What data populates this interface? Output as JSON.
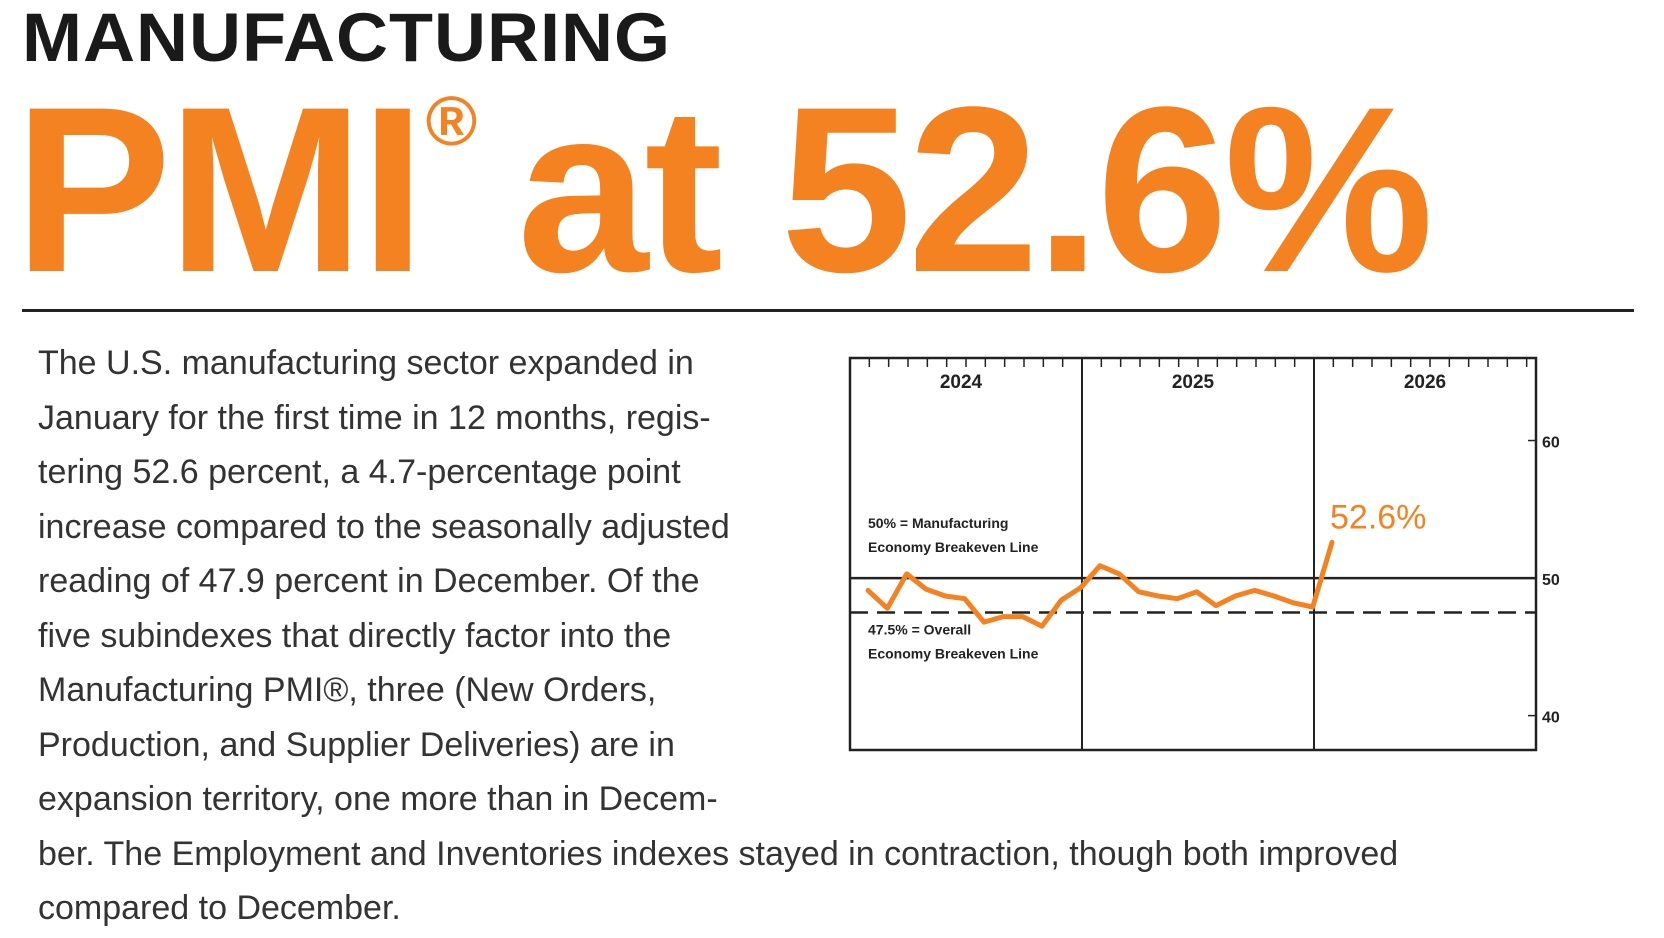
{
  "header": {
    "kicker": "MANUFACTURING",
    "headline_main": "PMI",
    "headline_reg": "®",
    "headline_rest": "at 52.6%"
  },
  "body": {
    "lines": [
      "The U.S. manufacturing sector expanded in",
      "January for the first time in 12 months, regis-",
      "tering 52.6 percent, a 4.7-percentage point",
      "increase compared to the seasonally adjusted",
      "reading of 47.9 percent in December. Of the",
      "five subindexes that directly factor into the",
      "Manufacturing PMI®, three (New Orders,",
      "Production, and Supplier Deliveries) are in",
      "expansion territory, one more than in Decem-",
      "ber. The Employment and Inventories indexes stayed in contraction, though both improved",
      "compared to December."
    ]
  },
  "colors": {
    "accent": "#f58220",
    "text": "#333333",
    "heading": "#1a1a1a",
    "axis": "#222222"
  },
  "chart_data": {
    "type": "line",
    "year_labels": [
      "2024",
      "2025",
      "2026"
    ],
    "y_ticks": [
      60,
      50,
      40
    ],
    "ylim": [
      37.5,
      66
    ],
    "x_months": [
      "2024-01",
      "2024-02",
      "2024-03",
      "2024-04",
      "2024-05",
      "2024-06",
      "2024-07",
      "2024-08",
      "2024-09",
      "2024-10",
      "2024-11",
      "2024-12",
      "2025-01",
      "2025-02",
      "2025-03",
      "2025-04",
      "2025-05",
      "2025-06",
      "2025-07",
      "2025-08",
      "2025-09",
      "2025-10",
      "2025-11",
      "2025-12",
      "2026-01"
    ],
    "series": [
      {
        "values": [
          49.1,
          47.8,
          50.3,
          49.2,
          48.7,
          48.5,
          46.8,
          47.2,
          47.2,
          46.5,
          48.4,
          49.3,
          50.9,
          50.3,
          49.0,
          48.7,
          48.5,
          49.0,
          48.0,
          48.7,
          49.1,
          48.7,
          48.2,
          47.9,
          52.6
        ]
      }
    ],
    "reference_lines": [
      {
        "value": 50,
        "style": "solid",
        "label_line1": "50% = Manufacturing",
        "label_line2": "Economy Breakeven Line"
      },
      {
        "value": 47.5,
        "style": "dashed",
        "label_line1": "47.5% = Overall",
        "label_line2": "Economy Breakeven Line"
      }
    ],
    "last_value_label": "52.6%"
  }
}
